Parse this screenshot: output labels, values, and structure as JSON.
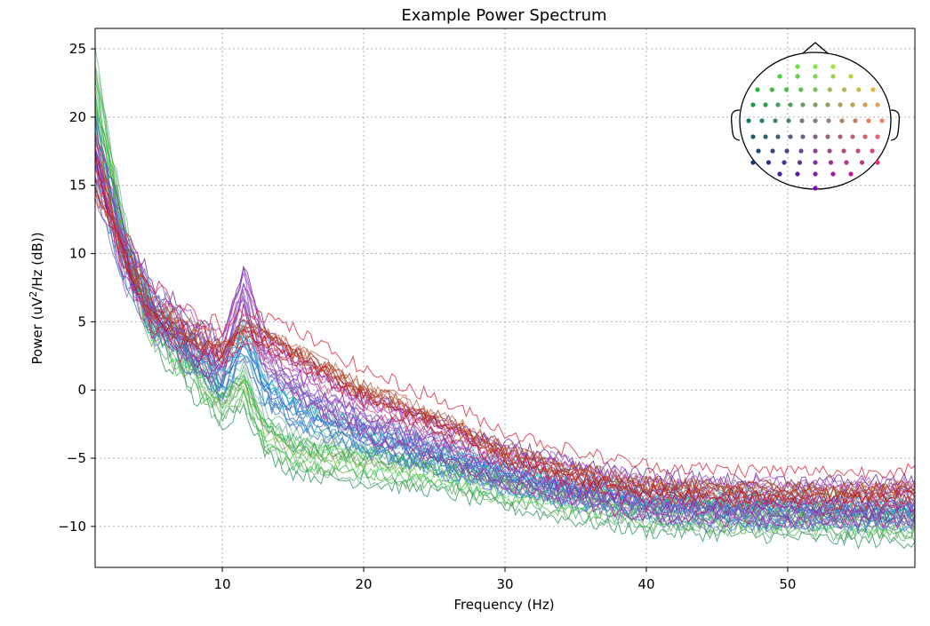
{
  "chart_data": {
    "type": "line",
    "title": "Example Power Spectrum",
    "xlabel": "Frequency (Hz)",
    "ylabel_prefix": "Power (uV",
    "ylabel_sup": "2",
    "ylabel_suffix": "/Hz (dB))",
    "xlim": [
      1,
      59
    ],
    "ylim": [
      -13,
      26.5
    ],
    "xticks": [
      10,
      20,
      30,
      40,
      50
    ],
    "yticks": [
      25,
      20,
      15,
      10,
      5,
      0,
      -5,
      -10
    ],
    "ytick_labels": [
      "25",
      "20",
      "15",
      "10",
      "5",
      "0",
      "−5",
      "−10"
    ],
    "grid": true,
    "legend": "top-right head sensor map",
    "channel_groups": [
      {
        "name": "green",
        "color": "#4caf50",
        "count": 16,
        "profile": [
          [
            1,
            21
          ],
          [
            3,
            11
          ],
          [
            5,
            5
          ],
          [
            8,
            1.5
          ],
          [
            10,
            -1
          ],
          [
            11.5,
            0.5
          ],
          [
            13,
            -3
          ],
          [
            15,
            -4.5
          ],
          [
            20,
            -5.2
          ],
          [
            25,
            -5.8
          ],
          [
            30,
            -7
          ],
          [
            35,
            -8
          ],
          [
            40,
            -8.8
          ],
          [
            45,
            -9
          ],
          [
            50,
            -9.2
          ],
          [
            55,
            -9.5
          ],
          [
            59,
            -9.5
          ]
        ]
      },
      {
        "name": "blue-teal",
        "color": "#3f7fbf",
        "count": 14,
        "profile": [
          [
            1,
            17
          ],
          [
            3,
            10
          ],
          [
            5,
            6
          ],
          [
            8,
            3
          ],
          [
            10,
            1
          ],
          [
            11.5,
            4
          ],
          [
            13,
            0.5
          ],
          [
            15,
            -1
          ],
          [
            20,
            -3
          ],
          [
            25,
            -4.5
          ],
          [
            30,
            -6
          ],
          [
            35,
            -7
          ],
          [
            40,
            -8
          ],
          [
            45,
            -8.4
          ],
          [
            50,
            -8.5
          ],
          [
            55,
            -8.6
          ],
          [
            59,
            -8.6
          ]
        ]
      },
      {
        "name": "purple",
        "color": "#8e3fb0",
        "count": 14,
        "profile": [
          [
            1,
            16
          ],
          [
            3,
            10
          ],
          [
            5,
            6
          ],
          [
            8,
            3.5
          ],
          [
            10,
            2.5
          ],
          [
            11.5,
            7.5
          ],
          [
            13,
            3
          ],
          [
            15,
            1
          ],
          [
            20,
            -2
          ],
          [
            25,
            -3.5
          ],
          [
            30,
            -5.5
          ],
          [
            35,
            -6.8
          ],
          [
            40,
            -7.8
          ],
          [
            45,
            -8.1
          ],
          [
            50,
            -8.2
          ],
          [
            55,
            -8.2
          ],
          [
            59,
            -8.2
          ]
        ]
      },
      {
        "name": "red",
        "color": "#b03040",
        "count": 12,
        "profile": [
          [
            1,
            16
          ],
          [
            3,
            10
          ],
          [
            5,
            6
          ],
          [
            8,
            4
          ],
          [
            10,
            3
          ],
          [
            11.5,
            4.5
          ],
          [
            13,
            4
          ],
          [
            15,
            3
          ],
          [
            20,
            0
          ],
          [
            25,
            -2
          ],
          [
            30,
            -4.5
          ],
          [
            35,
            -6
          ],
          [
            40,
            -7
          ],
          [
            45,
            -7.3
          ],
          [
            50,
            -7.4
          ],
          [
            55,
            -7.5
          ],
          [
            59,
            -7.2
          ]
        ]
      }
    ]
  }
}
